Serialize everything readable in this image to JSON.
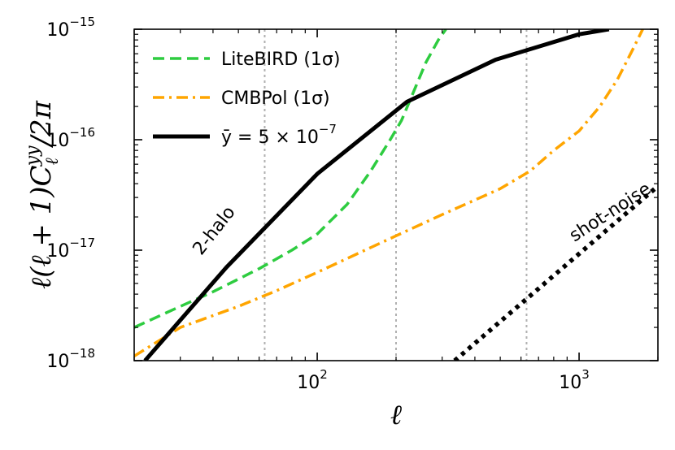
{
  "chart_data": {
    "type": "line",
    "xscale": "log",
    "yscale": "log",
    "xlim": [
      20,
      2000
    ],
    "ylim": [
      1e-18,
      1e-15
    ],
    "xlabel": "ℓ",
    "ylabel": "ℓ(ℓ + 1)C",
    "ylabel_sub": "ℓ",
    "ylabel_sup": "yy",
    "ylabel_tail": "/2π",
    "x_ticks": [
      {
        "value": 100,
        "base": "10",
        "exp": "2"
      },
      {
        "value": 1000,
        "base": "10",
        "exp": "3"
      }
    ],
    "y_ticks": [
      {
        "value": 1e-18,
        "base": "10",
        "exp": "−18"
      },
      {
        "value": 1e-17,
        "base": "10",
        "exp": "−17"
      },
      {
        "value": 1e-16,
        "base": "10",
        "exp": "−16"
      },
      {
        "value": 1e-15,
        "base": "10",
        "exp": "−15"
      }
    ],
    "vlines": [
      63,
      200,
      630
    ],
    "series": [
      {
        "name": "LiteBIRD (1σ)",
        "color": "#2ecc40",
        "style": "dashed",
        "x": [
          20,
          30,
          40,
          60,
          80,
          100,
          130,
          160,
          190,
          210,
          230,
          260,
          290,
          310
        ],
        "y": [
          2e-18,
          3.1e-18,
          4.2e-18,
          6.8e-18,
          1e-17,
          1.4e-17,
          2.6e-17,
          5.2e-17,
          1e-16,
          1.5e-16,
          2.5e-16,
          5e-16,
          8e-16,
          1e-15
        ]
      },
      {
        "name": "CMBPol (1σ)",
        "color": "#ffa500",
        "style": "dashdot",
        "x": [
          20,
          30,
          50,
          70,
          100,
          200,
          300,
          500,
          650,
          800,
          1000,
          1200,
          1400,
          1600,
          1750
        ],
        "y": [
          1.1e-18,
          2e-18,
          3.1e-18,
          4.3e-18,
          6.3e-18,
          1.35e-17,
          2.1e-17,
          3.6e-17,
          5.2e-17,
          8e-17,
          1.2e-16,
          2e-16,
          3.5e-16,
          6.5e-16,
          1e-15
        ]
      },
      {
        "name": "ȳ = 5 × 10⁻⁷",
        "legend_prefix": "ȳ = 5 × 10",
        "legend_exp": "−7",
        "color": "#000000",
        "style": "solid",
        "x": [
          22,
          45,
          100,
          220,
          480,
          1000,
          1300
        ],
        "y": [
          1e-18,
          7e-18,
          4.9e-17,
          2.2e-16,
          5.3e-16,
          9e-16,
          1e-15
        ]
      },
      {
        "name": "",
        "color": "#000000",
        "style": "dotted",
        "x": [
          335,
          2000
        ],
        "y": [
          1e-18,
          3.8e-17
        ]
      }
    ],
    "annotations": [
      {
        "text": "2-halo",
        "x": 42,
        "y": 1.4e-17,
        "rotation": -52
      },
      {
        "text": "shot-noise",
        "x": 1350,
        "y": 2e-17,
        "rotation": -33
      }
    ],
    "legend": "top-left",
    "grid": false
  }
}
